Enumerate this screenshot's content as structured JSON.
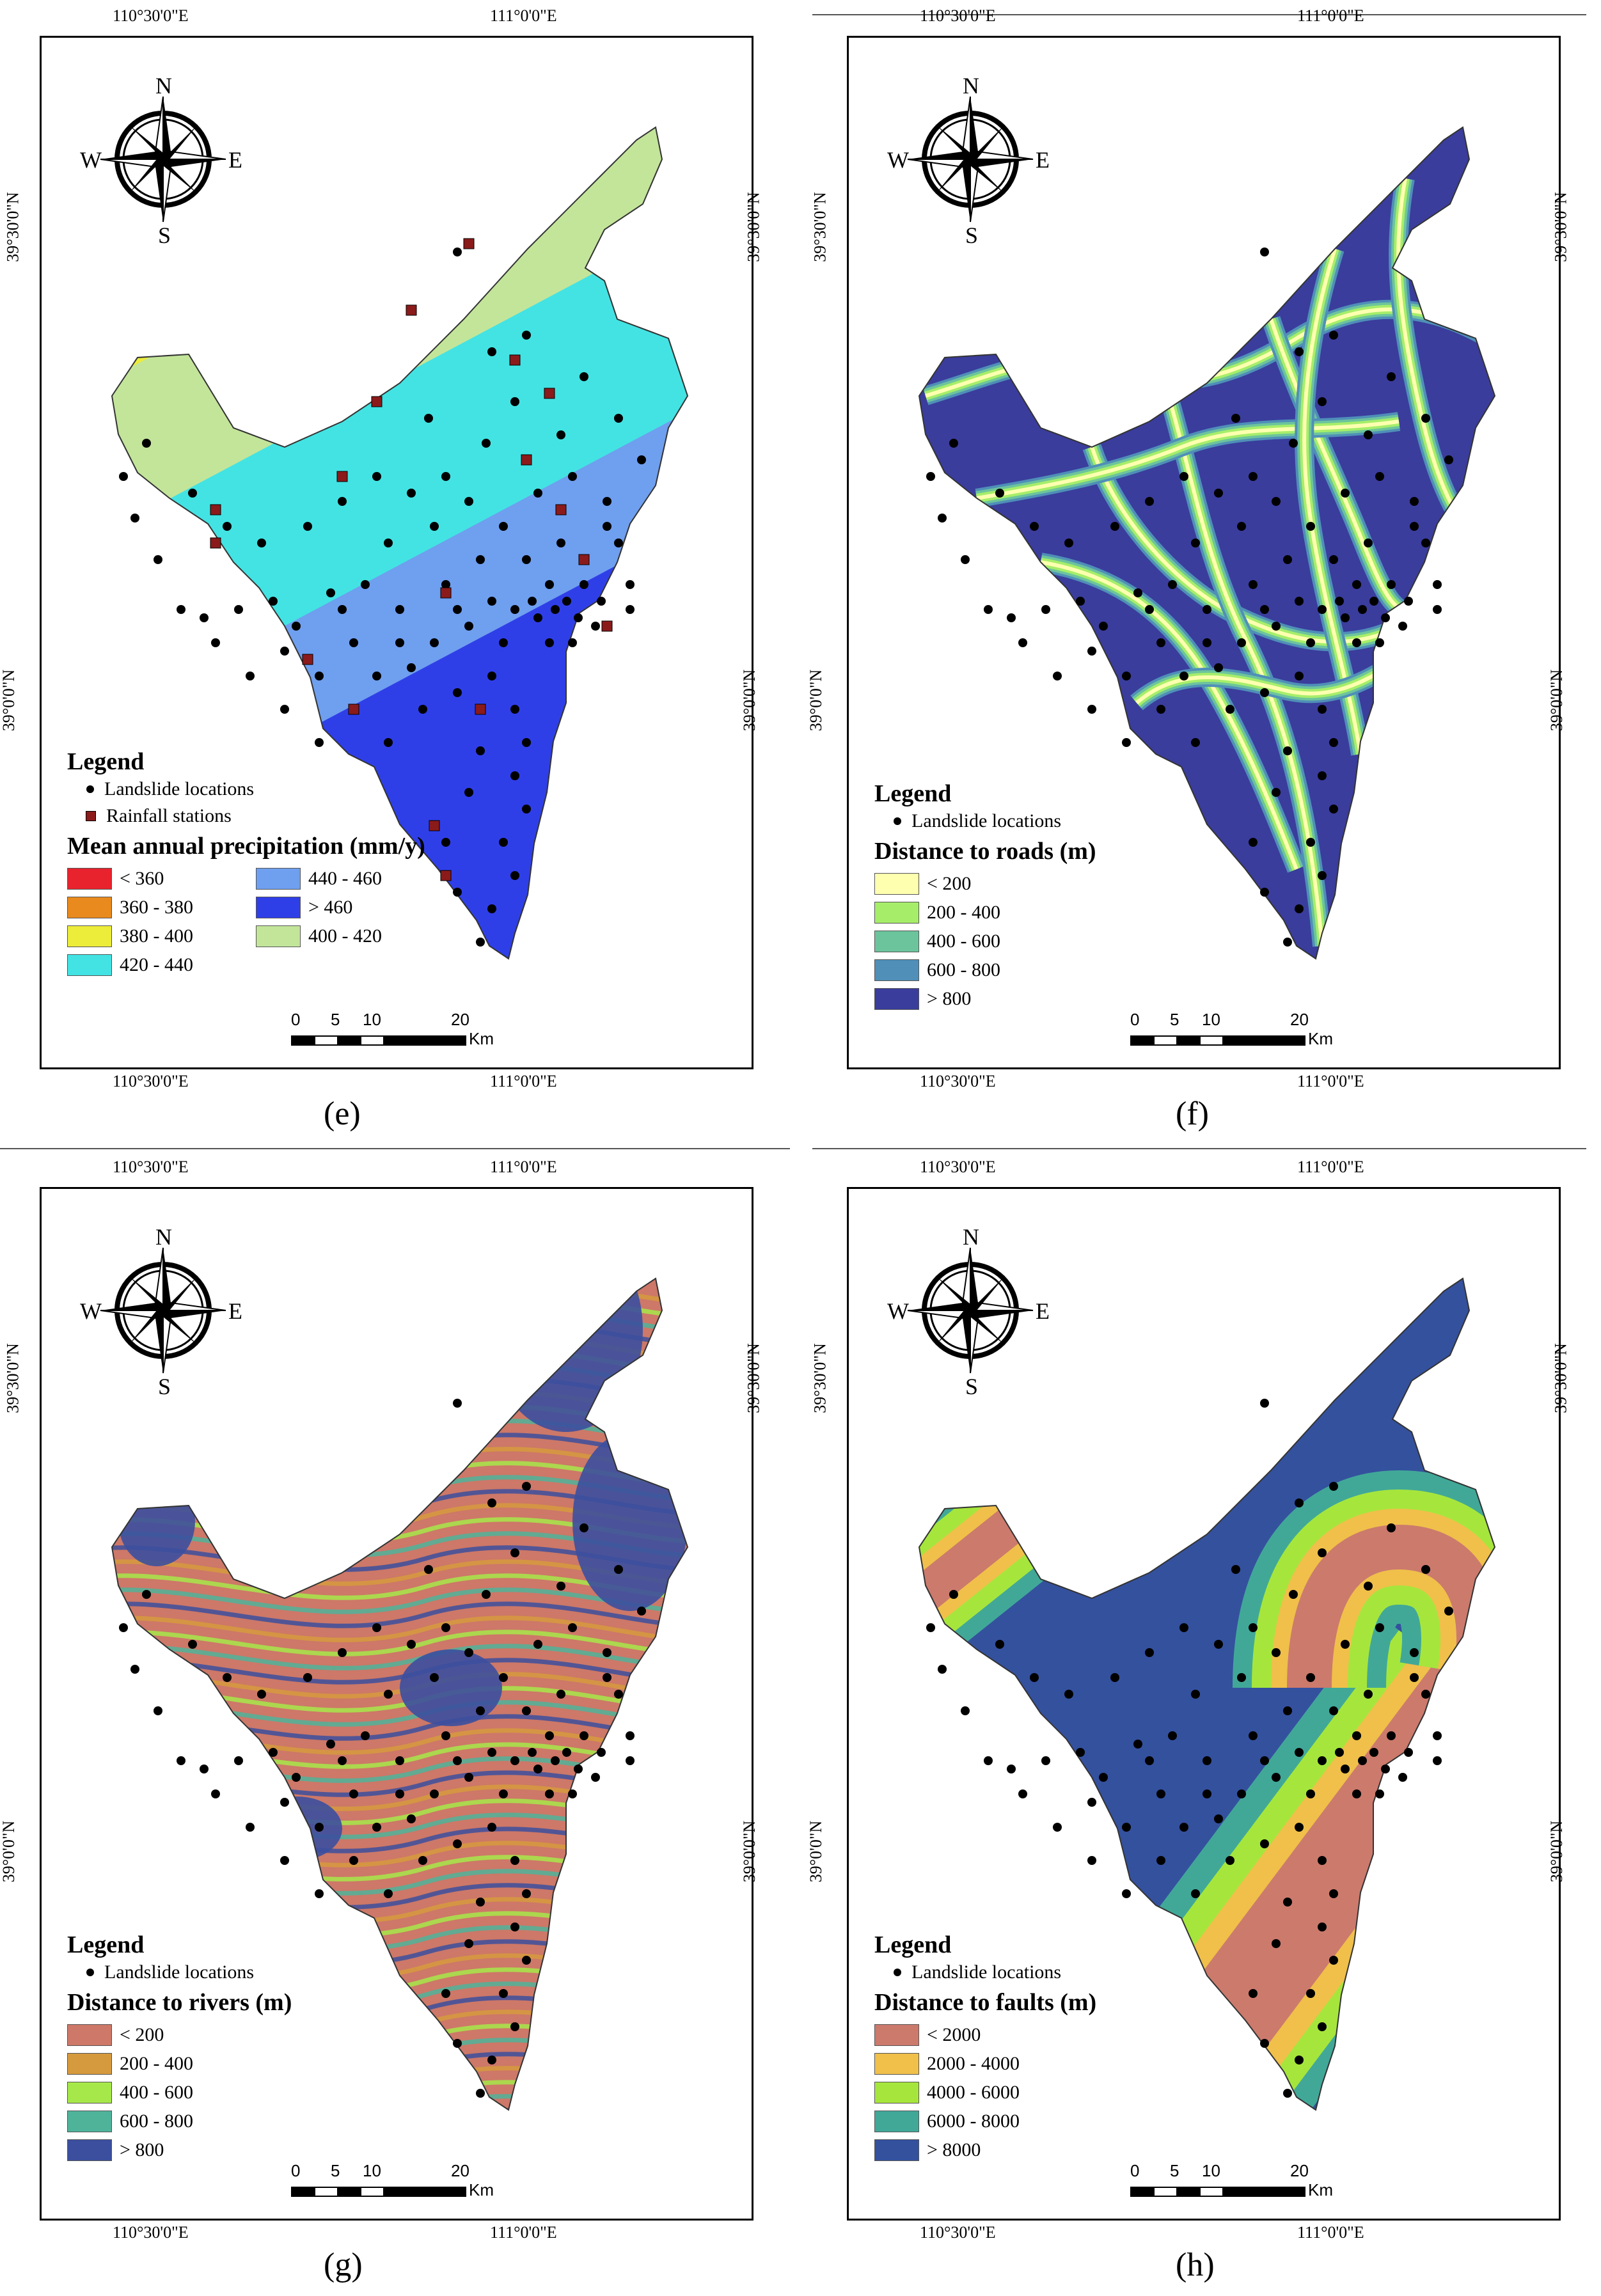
{
  "compass": {
    "n": "N",
    "s": "S",
    "w": "W",
    "e": "E"
  },
  "coords": {
    "lon_left": "110°30'0\"E",
    "lon_right": "111°0'0\"E",
    "lat_top": "39°30'0\"N",
    "lat_bottom": "39°0'0\"N"
  },
  "scale": {
    "t0": "0",
    "t5": "5",
    "t10": "10",
    "t20": "20",
    "unit": "Km"
  },
  "legend_heading": "Legend",
  "landslide_label": "Landslide locations",
  "panels": {
    "e": {
      "label": "(e)",
      "rainfall_label": "Rainfall stations",
      "title": "Mean annual precipitation (mm/y)",
      "classes": [
        {
          "label": "< 360",
          "color": "#e8232e"
        },
        {
          "label": "360 - 380",
          "color": "#e88a1e"
        },
        {
          "label": "380 - 400",
          "color": "#ecec3a"
        },
        {
          "label": "400 - 420",
          "color": "#c3e59a"
        },
        {
          "label": "420 - 440",
          "color": "#43e3e3"
        },
        {
          "label": "440 - 460",
          "color": "#6f9fef"
        },
        {
          "label": "> 460",
          "color": "#2f3fe8"
        }
      ]
    },
    "f": {
      "label": "(f)",
      "title": "Distance to roads (m)",
      "classes": [
        {
          "label": "< 200",
          "color": "#ffffb0"
        },
        {
          "label": "200 - 400",
          "color": "#a6ee6a"
        },
        {
          "label": "400 - 600",
          "color": "#6cc49c"
        },
        {
          "label": "600 - 800",
          "color": "#4f8fb8"
        },
        {
          "label": "> 800",
          "color": "#3a3d9c"
        }
      ]
    },
    "g": {
      "label": "(g)",
      "title": "Distance to rivers (m)",
      "classes": [
        {
          "label": "< 200",
          "color": "#cd7868"
        },
        {
          "label": "200 - 400",
          "color": "#d69a3e"
        },
        {
          "label": "400 - 600",
          "color": "#a6e84a"
        },
        {
          "label": "600 - 800",
          "color": "#4fb39a"
        },
        {
          "label": "> 800",
          "color": "#3c4f9e"
        }
      ]
    },
    "h": {
      "label": "(h)",
      "title": "Distance to faults (m)",
      "classes": [
        {
          "label": "< 2000",
          "color": "#cc7a6c"
        },
        {
          "label": "2000 - 4000",
          "color": "#f0c04a"
        },
        {
          "label": "4000 - 6000",
          "color": "#a6e63c"
        },
        {
          "label": "6000 - 8000",
          "color": "#41a898"
        },
        {
          "label": "> 8000",
          "color": "#34519e"
        }
      ]
    }
  },
  "landslides": [
    [
      0.6,
      0.15
    ],
    [
      0.66,
      0.27
    ],
    [
      0.72,
      0.25
    ],
    [
      0.55,
      0.35
    ],
    [
      0.65,
      0.38
    ],
    [
      0.7,
      0.33
    ],
    [
      0.78,
      0.37
    ],
    [
      0.8,
      0.42
    ],
    [
      0.74,
      0.44
    ],
    [
      0.86,
      0.45
    ],
    [
      0.88,
      0.5
    ],
    [
      0.82,
      0.55
    ],
    [
      0.9,
      0.58
    ],
    [
      0.84,
      0.6
    ],
    [
      0.8,
      0.62
    ],
    [
      0.76,
      0.62
    ],
    [
      0.7,
      0.58
    ],
    [
      0.64,
      0.52
    ],
    [
      0.58,
      0.55
    ],
    [
      0.5,
      0.58
    ],
    [
      0.44,
      0.55
    ],
    [
      0.38,
      0.56
    ],
    [
      0.32,
      0.6
    ],
    [
      0.28,
      0.57
    ],
    [
      0.22,
      0.58
    ],
    [
      0.16,
      0.59
    ],
    [
      0.12,
      0.58
    ],
    [
      0.08,
      0.52
    ],
    [
      0.04,
      0.47
    ],
    [
      0.02,
      0.42
    ],
    [
      0.06,
      0.38
    ],
    [
      0.14,
      0.44
    ],
    [
      0.2,
      0.48
    ],
    [
      0.26,
      0.5
    ],
    [
      0.34,
      0.48
    ],
    [
      0.4,
      0.45
    ],
    [
      0.46,
      0.42
    ],
    [
      0.52,
      0.44
    ],
    [
      0.56,
      0.48
    ],
    [
      0.62,
      0.45
    ],
    [
      0.68,
      0.48
    ],
    [
      0.72,
      0.52
    ],
    [
      0.76,
      0.55
    ],
    [
      0.79,
      0.57
    ],
    [
      0.74,
      0.59
    ],
    [
      0.68,
      0.62
    ],
    [
      0.62,
      0.6
    ],
    [
      0.56,
      0.62
    ],
    [
      0.52,
      0.65
    ],
    [
      0.46,
      0.66
    ],
    [
      0.42,
      0.62
    ],
    [
      0.36,
      0.66
    ],
    [
      0.3,
      0.7
    ],
    [
      0.36,
      0.74
    ],
    [
      0.42,
      0.7
    ],
    [
      0.48,
      0.74
    ],
    [
      0.54,
      0.7
    ],
    [
      0.6,
      0.68
    ],
    [
      0.66,
      0.66
    ],
    [
      0.7,
      0.7
    ],
    [
      0.72,
      0.74
    ],
    [
      0.7,
      0.78
    ],
    [
      0.72,
      0.82
    ],
    [
      0.68,
      0.86
    ],
    [
      0.7,
      0.9
    ],
    [
      0.66,
      0.94
    ],
    [
      0.64,
      0.98
    ],
    [
      0.6,
      0.92
    ],
    [
      0.58,
      0.86
    ],
    [
      0.62,
      0.8
    ],
    [
      0.64,
      0.75
    ],
    [
      0.82,
      0.3
    ],
    [
      0.88,
      0.35
    ],
    [
      0.92,
      0.4
    ],
    [
      0.86,
      0.48
    ],
    [
      0.9,
      0.55
    ],
    [
      0.78,
      0.5
    ],
    [
      0.58,
      0.42
    ],
    [
      0.48,
      0.5
    ],
    [
      0.4,
      0.58
    ],
    [
      0.24,
      0.66
    ],
    [
      0.18,
      0.62
    ],
    [
      0.3,
      0.63
    ],
    [
      0.5,
      0.62
    ],
    [
      0.6,
      0.58
    ],
    [
      0.66,
      0.57
    ],
    [
      0.73,
      0.57
    ],
    [
      0.77,
      0.58
    ],
    [
      0.81,
      0.59
    ],
    [
      0.85,
      0.57
    ]
  ],
  "stations": [
    [
      0.62,
      0.14
    ],
    [
      0.52,
      0.22
    ],
    [
      0.46,
      0.33
    ],
    [
      0.7,
      0.28
    ],
    [
      0.76,
      0.32
    ],
    [
      0.72,
      0.4
    ],
    [
      0.78,
      0.46
    ],
    [
      0.82,
      0.52
    ],
    [
      0.18,
      0.5
    ],
    [
      0.18,
      0.46
    ],
    [
      0.4,
      0.42
    ],
    [
      0.58,
      0.56
    ],
    [
      0.86,
      0.6
    ],
    [
      0.34,
      0.64
    ],
    [
      0.42,
      0.7
    ],
    [
      0.64,
      0.7
    ],
    [
      0.56,
      0.84
    ],
    [
      0.58,
      0.9
    ]
  ]
}
